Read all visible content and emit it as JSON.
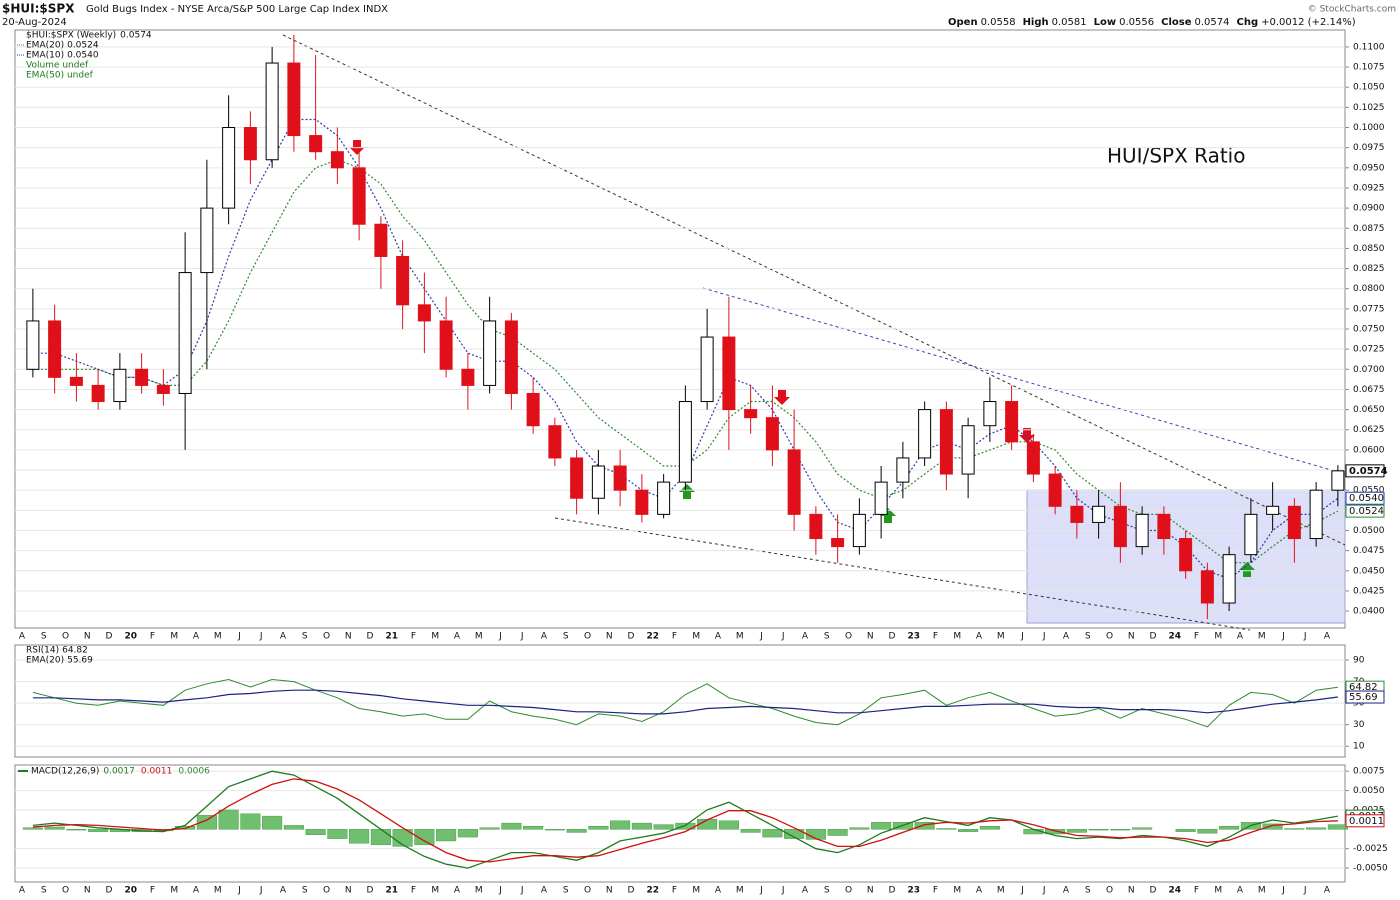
{
  "chart_data": [
    {
      "type": "candlestick",
      "symbol": "$HUI:$SPX",
      "title": "Gold Bugs Index - NYSE Arca/S&P 500 Large Cap Index INDX",
      "date": "20-Aug-2024",
      "quote": [
        {
          "label": "Open",
          "value": "0.0558"
        },
        {
          "label": "High",
          "value": "0.0581"
        },
        {
          "label": "Low",
          "value": "0.0556"
        },
        {
          "label": "Close",
          "value": "0.0574"
        },
        {
          "label": "Chg",
          "value": "+0.0012 (+2.14%)"
        }
      ],
      "credit": "© StockCharts.com",
      "annotation": "HUI/SPX Ratio",
      "price_name": "$HUI:$SPX (Weekly)",
      "price_label": "0.0574",
      "legend_extra": [
        "Volume undef",
        "EMA(50) undef"
      ],
      "categories": [
        "A",
        "S",
        "O",
        "N",
        "D",
        "20",
        "F",
        "M",
        "A",
        "M",
        "J",
        "J",
        "A",
        "S",
        "O",
        "N",
        "D",
        "21",
        "F",
        "M",
        "A",
        "M",
        "J",
        "J",
        "A",
        "S",
        "O",
        "N",
        "D",
        "22",
        "F",
        "M",
        "A",
        "M",
        "J",
        "J",
        "A",
        "S",
        "O",
        "N",
        "D",
        "23",
        "F",
        "M",
        "A",
        "M",
        "J",
        "J",
        "A",
        "S",
        "O",
        "N",
        "D",
        "24",
        "F",
        "M",
        "A",
        "M",
        "J",
        "J",
        "A"
      ],
      "open": [
        0.07,
        0.076,
        0.069,
        0.068,
        0.066,
        0.07,
        0.068,
        0.067,
        0.082,
        0.09,
        0.1,
        0.096,
        0.108,
        0.099,
        0.097,
        0.095,
        0.088,
        0.084,
        0.078,
        0.076,
        0.07,
        0.068,
        0.076,
        0.067,
        0.063,
        0.059,
        0.054,
        0.058,
        0.055,
        0.052,
        0.056,
        0.066,
        0.074,
        0.065,
        0.064,
        0.06,
        0.052,
        0.049,
        0.048,
        0.052,
        0.056,
        0.059,
        0.065,
        0.057,
        0.063,
        0.066,
        0.061,
        0.057,
        0.053,
        0.051,
        0.053,
        0.048,
        0.052,
        0.049,
        0.045,
        0.041,
        0.047,
        0.052,
        0.053,
        0.049,
        0.055
      ],
      "high": [
        0.08,
        0.078,
        0.072,
        0.07,
        0.072,
        0.072,
        0.07,
        0.087,
        0.096,
        0.104,
        0.102,
        0.11,
        0.1115,
        0.109,
        0.1,
        0.097,
        0.089,
        0.086,
        0.082,
        0.079,
        0.072,
        0.079,
        0.077,
        0.069,
        0.064,
        0.06,
        0.06,
        0.06,
        0.057,
        0.057,
        0.068,
        0.0775,
        0.079,
        0.068,
        0.068,
        0.065,
        0.053,
        0.052,
        0.054,
        0.058,
        0.061,
        0.066,
        0.066,
        0.064,
        0.069,
        0.068,
        0.062,
        0.058,
        0.055,
        0.055,
        0.056,
        0.053,
        0.053,
        0.05,
        0.046,
        0.048,
        0.054,
        0.056,
        0.054,
        0.056,
        0.0581
      ],
      "low": [
        0.069,
        0.067,
        0.066,
        0.065,
        0.065,
        0.067,
        0.0655,
        0.06,
        0.07,
        0.088,
        0.093,
        0.095,
        0.097,
        0.096,
        0.093,
        0.086,
        0.08,
        0.075,
        0.072,
        0.069,
        0.065,
        0.067,
        0.065,
        0.062,
        0.058,
        0.052,
        0.052,
        0.053,
        0.051,
        0.0515,
        0.055,
        0.065,
        0.06,
        0.062,
        0.058,
        0.05,
        0.047,
        0.046,
        0.047,
        0.049,
        0.054,
        0.058,
        0.055,
        0.054,
        0.061,
        0.06,
        0.056,
        0.052,
        0.049,
        0.049,
        0.046,
        0.047,
        0.047,
        0.044,
        0.039,
        0.04,
        0.046,
        0.05,
        0.046,
        0.048,
        0.053
      ],
      "close": [
        0.076,
        0.069,
        0.068,
        0.066,
        0.07,
        0.068,
        0.067,
        0.082,
        0.09,
        0.1,
        0.096,
        0.108,
        0.099,
        0.097,
        0.095,
        0.088,
        0.084,
        0.078,
        0.076,
        0.07,
        0.068,
        0.076,
        0.067,
        0.063,
        0.059,
        0.054,
        0.058,
        0.055,
        0.052,
        0.056,
        0.066,
        0.074,
        0.065,
        0.064,
        0.06,
        0.052,
        0.049,
        0.048,
        0.052,
        0.056,
        0.059,
        0.065,
        0.057,
        0.063,
        0.066,
        0.061,
        0.057,
        0.053,
        0.051,
        0.053,
        0.048,
        0.052,
        0.049,
        0.045,
        0.041,
        0.047,
        0.052,
        0.053,
        0.049,
        0.055,
        0.0574
      ],
      "up_color": "#000000",
      "down_color": "#e0101a",
      "series": [
        {
          "name": "EMA(20)",
          "label": "0.0524",
          "color": "#2e8b2e",
          "values": [
            0.07,
            0.07,
            0.07,
            0.07,
            0.069,
            0.069,
            0.068,
            0.068,
            0.071,
            0.076,
            0.082,
            0.087,
            0.092,
            0.095,
            0.096,
            0.095,
            0.093,
            0.089,
            0.086,
            0.082,
            0.078,
            0.075,
            0.074,
            0.072,
            0.07,
            0.067,
            0.064,
            0.062,
            0.06,
            0.058,
            0.058,
            0.06,
            0.064,
            0.066,
            0.066,
            0.064,
            0.061,
            0.057,
            0.055,
            0.054,
            0.055,
            0.057,
            0.059,
            0.059,
            0.06,
            0.061,
            0.061,
            0.06,
            0.057,
            0.055,
            0.053,
            0.052,
            0.052,
            0.05,
            0.048,
            0.046,
            0.046,
            0.048,
            0.05,
            0.051,
            0.0524
          ]
        },
        {
          "name": "EMA(10)",
          "label": "0.0540",
          "color": "#2b3fae",
          "values": [
            0.072,
            0.072,
            0.071,
            0.07,
            0.069,
            0.069,
            0.068,
            0.07,
            0.076,
            0.084,
            0.091,
            0.096,
            0.101,
            0.101,
            0.099,
            0.095,
            0.09,
            0.084,
            0.08,
            0.076,
            0.072,
            0.071,
            0.071,
            0.069,
            0.066,
            0.061,
            0.058,
            0.057,
            0.055,
            0.054,
            0.057,
            0.063,
            0.069,
            0.068,
            0.065,
            0.06,
            0.055,
            0.051,
            0.05,
            0.053,
            0.056,
            0.06,
            0.061,
            0.06,
            0.062,
            0.063,
            0.061,
            0.058,
            0.054,
            0.052,
            0.051,
            0.05,
            0.05,
            0.048,
            0.045,
            0.044,
            0.046,
            0.05,
            0.052,
            0.052,
            0.054
          ]
        }
      ],
      "ylim": [
        0.0379,
        0.1121
      ],
      "yticks": [
        {
          "value": 0.04,
          "label": "0.0400"
        },
        {
          "value": 0.0425,
          "label": "0.0425"
        },
        {
          "value": 0.045,
          "label": "0.0450"
        },
        {
          "value": 0.0475,
          "label": "0.0475"
        },
        {
          "value": 0.05,
          "label": "0.0500"
        },
        {
          "value": 0.0525,
          "label": "0.0525"
        },
        {
          "value": 0.055,
          "label": "0.0550"
        },
        {
          "value": 0.0575,
          "label": "0.0575"
        },
        {
          "value": 0.06,
          "label": "0.0600"
        },
        {
          "value": 0.0625,
          "label": "0.0625"
        },
        {
          "value": 0.065,
          "label": "0.0650"
        },
        {
          "value": 0.0675,
          "label": "0.0675"
        },
        {
          "value": 0.07,
          "label": "0.0700"
        },
        {
          "value": 0.0725,
          "label": "0.0725"
        },
        {
          "value": 0.075,
          "label": "0.0750"
        },
        {
          "value": 0.0775,
          "label": "0.0775"
        },
        {
          "value": 0.08,
          "label": "0.0800"
        },
        {
          "value": 0.0825,
          "label": "0.0825"
        },
        {
          "value": 0.085,
          "label": "0.0850"
        },
        {
          "value": 0.0875,
          "label": "0.0875"
        },
        {
          "value": 0.09,
          "label": "0.0900"
        },
        {
          "value": 0.0925,
          "label": "0.0925"
        },
        {
          "value": 0.095,
          "label": "0.0950"
        },
        {
          "value": 0.0975,
          "label": "0.0975"
        },
        {
          "value": 0.1,
          "label": "0.1000"
        },
        {
          "value": 0.1025,
          "label": "0.1025"
        },
        {
          "value": 0.105,
          "label": "0.1050"
        },
        {
          "value": 0.1075,
          "label": "0.1075"
        },
        {
          "value": 0.11,
          "label": "0.1100"
        }
      ],
      "grid": true
    },
    {
      "type": "line",
      "series": [
        {
          "name": "RSI(14)",
          "label": "64.82",
          "color": "#2e8b2e",
          "values": [
            60,
            55,
            50,
            48,
            52,
            50,
            48,
            62,
            68,
            72,
            65,
            72,
            70,
            62,
            55,
            45,
            42,
            38,
            40,
            35,
            35,
            52,
            42,
            38,
            35,
            30,
            40,
            38,
            33,
            42,
            58,
            68,
            55,
            50,
            45,
            38,
            32,
            30,
            40,
            55,
            58,
            62,
            48,
            55,
            60,
            52,
            45,
            38,
            40,
            45,
            36,
            45,
            40,
            35,
            28,
            48,
            60,
            58,
            50,
            62,
            64.82
          ]
        },
        {
          "name": "EMA(20)",
          "label": "55.69",
          "color": "#1a237e",
          "values": [
            55,
            55,
            54,
            53,
            53,
            52,
            51,
            53,
            55,
            58,
            59,
            61,
            62,
            62,
            61,
            59,
            57,
            54,
            52,
            50,
            48,
            48,
            47,
            46,
            44,
            42,
            42,
            41,
            40,
            40,
            42,
            45,
            46,
            47,
            46,
            45,
            43,
            41,
            41,
            43,
            45,
            47,
            47,
            48,
            49,
            49,
            49,
            47,
            46,
            46,
            44,
            44,
            44,
            43,
            41,
            43,
            46,
            49,
            51,
            53,
            55.69
          ]
        }
      ],
      "ylim": [
        0,
        104
      ],
      "yticks": [
        10,
        30,
        50,
        70,
        90
      ],
      "grid": true
    },
    {
      "type": "macd",
      "name": "MACD(12,26,9)",
      "series": [
        {
          "name": "MACD",
          "label": "0.0017",
          "color": "#1f7a1f",
          "values": [
            0.0005,
            0.0008,
            0.0005,
            0.0002,
            0.0,
            -0.0002,
            -0.0003,
            0.0005,
            0.003,
            0.0055,
            0.0065,
            0.0075,
            0.007,
            0.0055,
            0.004,
            0.002,
            0.0,
            -0.002,
            -0.0035,
            -0.0045,
            -0.005,
            -0.004,
            -0.003,
            -0.003,
            -0.0035,
            -0.004,
            -0.003,
            -0.0015,
            -0.001,
            -0.0005,
            0.0005,
            0.0025,
            0.0035,
            0.002,
            0.0005,
            -0.001,
            -0.0025,
            -0.003,
            -0.002,
            -0.0005,
            0.0005,
            0.0015,
            0.001,
            0.0005,
            0.0015,
            0.0012,
            0.0,
            -0.0008,
            -0.0012,
            -0.001,
            -0.0012,
            -0.0008,
            -0.001,
            -0.0015,
            -0.0022,
            -0.001,
            0.0005,
            0.0012,
            0.0008,
            0.0012,
            0.0017
          ]
        },
        {
          "name": "Signal",
          "label": "0.0011",
          "color": "#d01010",
          "values": [
            0.0003,
            0.0005,
            0.0006,
            0.0005,
            0.0003,
            0.0001,
            -0.0001,
            0.0001,
            0.0012,
            0.003,
            0.0045,
            0.0058,
            0.0065,
            0.0062,
            0.0052,
            0.0038,
            0.002,
            0.0002,
            -0.0015,
            -0.003,
            -0.004,
            -0.0042,
            -0.0038,
            -0.0034,
            -0.0034,
            -0.0036,
            -0.0034,
            -0.0026,
            -0.0018,
            -0.0011,
            -0.0003,
            0.0012,
            0.0024,
            0.0024,
            0.0015,
            0.0002,
            -0.0012,
            -0.0022,
            -0.0022,
            -0.0014,
            -0.0004,
            0.0006,
            0.0009,
            0.0008,
            0.0011,
            0.0012,
            0.0006,
            -0.0002,
            -0.0008,
            -0.0009,
            -0.0011,
            -0.001,
            -0.001,
            -0.0012,
            -0.0017,
            -0.0014,
            -0.0004,
            0.0005,
            0.0007,
            0.001,
            0.0011
          ]
        }
      ],
      "histogram": {
        "label": "0.0006",
        "color": "#6fbf6f",
        "values": [
          0.0002,
          0.0003,
          -0.0001,
          -0.0003,
          -0.0003,
          -0.0003,
          -0.0002,
          0.0004,
          0.0018,
          0.0025,
          0.002,
          0.0017,
          0.0005,
          -0.0007,
          -0.0012,
          -0.0018,
          -0.002,
          -0.0022,
          -0.002,
          -0.0015,
          -0.001,
          0.0002,
          0.0008,
          0.0004,
          -0.0001,
          -0.0004,
          0.0004,
          0.0011,
          0.0008,
          0.0006,
          0.0008,
          0.0013,
          0.0011,
          -0.0004,
          -0.001,
          -0.0012,
          -0.0013,
          -0.0008,
          0.0002,
          0.0009,
          0.0009,
          0.0009,
          0.0001,
          -0.0003,
          0.0004,
          0,
          -0.0006,
          -0.0006,
          -0.0004,
          -0.0001,
          -0.0001,
          0.0002,
          0,
          -0.0003,
          -0.0005,
          0.0004,
          0.0009,
          0.0007,
          0.0001,
          0.0002,
          0.0006
        ]
      },
      "ylim": [
        -0.0068,
        0.0083
      ],
      "yticks": [
        {
          "value": -0.005,
          "label": "-0.0050"
        },
        {
          "value": -0.0025,
          "label": "-0.0025"
        },
        {
          "value": 0.0025,
          "label": "0.0025"
        },
        {
          "value": 0.005,
          "label": "0.0050"
        },
        {
          "value": 0.0075,
          "label": "0.0075"
        }
      ],
      "grid": true
    }
  ]
}
